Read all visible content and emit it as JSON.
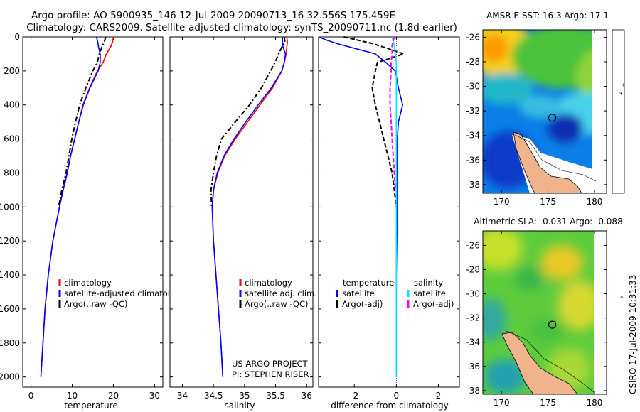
{
  "title": {
    "line1": "Argo profile: AO 5900935_146 12-Jul-2009 20090713_16 32.556S 175.459E",
    "line2": "Climatology: CARS2009. Satellite-adjusted climatology: synTS_20090711.nc (1.8d earlier)"
  },
  "colors": {
    "red": "#ff0000",
    "blue": "#0000ff",
    "black": "#000000",
    "magenta": "#ff00ff",
    "cyan": "#00e5ff",
    "land": "#f0b48c"
  },
  "chart_data": [
    {
      "type": "line",
      "name": "temperature",
      "xlabel": "temperature",
      "xlim": [
        -2,
        32
      ],
      "ylim": [
        2060,
        0
      ],
      "xticks": [
        0,
        10,
        20,
        30
      ],
      "yticks": [
        0,
        200,
        400,
        600,
        800,
        1000,
        1200,
        1400,
        1600,
        1800,
        2000
      ],
      "series": [
        {
          "name": "climatology",
          "color": "red",
          "dash": "solid",
          "depth": [
            0,
            30,
            60,
            100,
            150,
            200,
            300,
            400,
            500,
            600,
            700,
            800,
            900,
            1000,
            1200,
            1400,
            1600,
            1800,
            2000
          ],
          "values": [
            20.0,
            19.8,
            19.3,
            18.3,
            17.5,
            16.1,
            14.2,
            12.6,
            11.6,
            10.6,
            9.6,
            8.8,
            7.8,
            6.9,
            5.3,
            4.2,
            3.4,
            2.9,
            2.4
          ]
        },
        {
          "name": "satellite-adjusted climatology",
          "color": "blue",
          "dash": "solid",
          "depth": [
            0,
            30,
            60,
            100,
            150,
            200,
            300,
            400,
            500,
            600,
            700,
            800,
            900,
            1000,
            1200,
            1400,
            1600,
            1800,
            2000
          ],
          "values": [
            15.9,
            16.2,
            16.4,
            16.8,
            16.8,
            16.3,
            14.3,
            12.7,
            11.6,
            10.6,
            9.6,
            8.8,
            7.8,
            6.9,
            5.3,
            4.2,
            3.4,
            2.9,
            2.4
          ]
        },
        {
          "name": "Argo(..raw -QC)",
          "color": "black",
          "dash": "dashdot",
          "depth": [
            0,
            30,
            60,
            100,
            150,
            200,
            300,
            400,
            500,
            600,
            700,
            800,
            900,
            1000
          ],
          "values": [
            18.1,
            17.8,
            17.2,
            16.6,
            16.1,
            15.0,
            13.3,
            11.8,
            10.8,
            9.9,
            9.2,
            8.5,
            7.5,
            6.7
          ]
        }
      ],
      "legend": [
        "climatology",
        "satellite-adjusted climatology",
        "Argo(..raw -QC)"
      ]
    },
    {
      "type": "line",
      "name": "salinity",
      "xlabel": "salinity",
      "xlim": [
        33.8,
        36.1
      ],
      "ylim": [
        2060,
        0
      ],
      "xticks": [
        34,
        34.5,
        35,
        35.5,
        36
      ],
      "xticklabels": [
        "34",
        "34.5",
        "35",
        "35.5",
        "36"
      ],
      "series": [
        {
          "name": "climatology",
          "color": "red",
          "dash": "solid",
          "depth": [
            0,
            30,
            60,
            100,
            150,
            200,
            300,
            400,
            500,
            600,
            700,
            800,
            900,
            1000,
            1200,
            1400,
            1600,
            1800,
            2000
          ],
          "values": [
            35.68,
            35.69,
            35.68,
            35.67,
            35.64,
            35.6,
            35.45,
            35.25,
            35.05,
            34.85,
            34.68,
            34.57,
            34.5,
            34.48,
            34.5,
            34.54,
            34.58,
            34.62,
            34.65
          ]
        },
        {
          "name": "satellite adj. clim.",
          "color": "blue",
          "dash": "solid",
          "depth": [
            0,
            30,
            60,
            100,
            150,
            200,
            300,
            400,
            500,
            600,
            700,
            800,
            900,
            1000,
            1200,
            1400,
            1600,
            1800,
            2000
          ],
          "values": [
            35.61,
            35.61,
            35.62,
            35.66,
            35.64,
            35.6,
            35.43,
            35.22,
            35.02,
            34.83,
            34.67,
            34.56,
            34.5,
            34.48,
            34.5,
            34.54,
            34.58,
            34.62,
            34.65
          ]
        },
        {
          "name": "Argo(..raw -QC)",
          "color": "black",
          "dash": "dashdot",
          "depth": [
            0,
            30,
            60,
            100,
            150,
            200,
            300,
            400,
            500,
            600,
            700,
            800,
            900,
            1000
          ],
          "values": [
            35.64,
            35.65,
            35.6,
            35.55,
            35.49,
            35.42,
            35.27,
            35.08,
            34.85,
            34.63,
            34.55,
            34.5,
            34.46,
            34.47
          ]
        }
      ],
      "legend": [
        "climatology",
        "satellite adj. clim.",
        "Argo(..raw -QC)"
      ]
    },
    {
      "type": "line",
      "name": "difference",
      "xlabel": "difference from climatology",
      "xlim": [
        -3.7,
        3.0
      ],
      "ylim": [
        2060,
        0
      ],
      "xticks": [
        -2,
        0,
        2
      ],
      "xticklabels": [
        "-2",
        "0",
        "2"
      ],
      "series": [
        {
          "name": "temperature satellite",
          "color": "blue",
          "dash": "solid",
          "depth": [
            0,
            20,
            40,
            60,
            100,
            150,
            200,
            300,
            400,
            500,
            600,
            800,
            1000,
            1400,
            2000
          ],
          "values": [
            -3.7,
            -3.3,
            -2.8,
            -2.2,
            -1.0,
            -0.5,
            -0.05,
            0.1,
            0.3,
            0.1,
            0.05,
            0.05,
            0.05,
            0.0,
            0.0
          ]
        },
        {
          "name": "temperature Argo(-adj)",
          "color": "black",
          "dash": "dash",
          "depth": [
            0,
            20,
            40,
            60,
            100,
            150,
            200,
            300,
            400,
            500,
            600,
            700,
            800,
            900,
            1000
          ],
          "values": [
            -2.5,
            -1.8,
            -1.1,
            -0.6,
            0.35,
            -0.9,
            -1.0,
            -1.15,
            -1.0,
            -0.8,
            -0.6,
            -0.4,
            -0.2,
            -0.1,
            0.0
          ]
        },
        {
          "name": "salinity satellite",
          "color": "cyan",
          "dash": "solid",
          "depth": [
            0,
            50,
            100,
            150,
            200,
            400,
            800,
            1200,
            1600,
            2000
          ],
          "values": [
            -0.2,
            -0.1,
            -0.05,
            0.0,
            0.0,
            0.0,
            0.0,
            0.0,
            0.0,
            0.0
          ]
        },
        {
          "name": "salinity Argo(-adj)",
          "color": "magenta",
          "dash": "dash",
          "depth": [
            0,
            50,
            100,
            150,
            200,
            300,
            400,
            500,
            600,
            700,
            800,
            900
          ],
          "values": [
            -0.1,
            -0.2,
            -0.2,
            -0.25,
            -0.25,
            -0.3,
            -0.3,
            -0.25,
            -0.2,
            -0.15,
            -0.1,
            -0.05
          ]
        }
      ],
      "legend_left_title": "temperature",
      "legend_right_title": "salinity",
      "legend_left": [
        "satellite",
        "Argo(-adj)"
      ],
      "legend_right": [
        "satellite",
        "Argo(-adj)"
      ]
    },
    {
      "type": "heatmap",
      "name": "amsre-sst",
      "title": "AMSR-E SST: 16.3  Argo: 17.1",
      "xticks": [
        170,
        175,
        180
      ],
      "yticks": [
        -26,
        -28,
        -30,
        -32,
        -34,
        -36,
        -38
      ],
      "xticklabels": [
        "170",
        "175",
        "180"
      ],
      "yticklabels": [
        "-26",
        "-28",
        "-30",
        "-32",
        "-34",
        "-36",
        "-38"
      ],
      "marker": {
        "lon": 175.459,
        "lat": -32.556
      }
    },
    {
      "type": "heatmap",
      "name": "altimetric-sla",
      "title": "Altimetric SLA: -0.031  Argo: -0.088",
      "xticks": [
        170,
        175,
        180
      ],
      "yticks": [
        -26,
        -28,
        -30,
        -32,
        -34,
        -36,
        -38
      ],
      "xticklabels": [
        "170",
        "175",
        "180"
      ],
      "yticklabels": [
        "-26",
        "-28",
        "-30",
        "-32",
        "-34",
        "-36",
        "-38"
      ],
      "marker": {
        "lon": 175.459,
        "lat": -32.556
      }
    }
  ],
  "yticklabels": [
    "0",
    "200",
    "400",
    "600",
    "800",
    "1000",
    "1200",
    "1400",
    "1600",
    "1800",
    "2000"
  ],
  "temp_xticklabels": [
    "0",
    "10",
    "20",
    "30"
  ],
  "credits": {
    "project": "US ARGO PROJECT",
    "pi": "PI: STEPHEN RISER"
  },
  "footer": "CSIRO  17-Jul-2009 10:31:33"
}
